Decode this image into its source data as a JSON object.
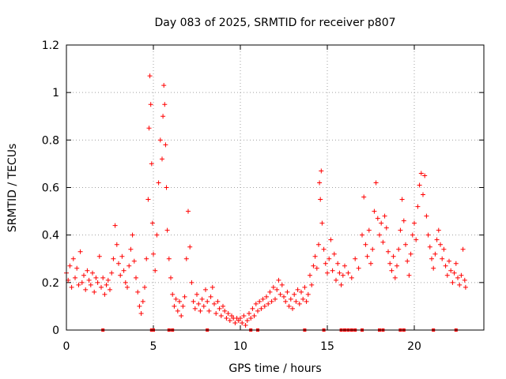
{
  "chart_data": {
    "type": "scatter",
    "title": "Day 083 of 2025, SRMTID for receiver p807",
    "xlabel": "GPS time / hours",
    "ylabel": "SRMTID / TECUs",
    "xlim": [
      0,
      24
    ],
    "ylim": [
      0,
      1.2
    ],
    "xticks": [
      0,
      5,
      10,
      15,
      20
    ],
    "yticks": [
      0,
      0.2,
      0.4,
      0.6,
      0.8,
      1,
      1.2
    ],
    "xtick_labels": [
      "0",
      "5",
      "10",
      "15",
      "20"
    ],
    "ytick_labels": [
      "0",
      "0.2",
      "0.4",
      "0.6",
      "0.8",
      "1",
      "1.2"
    ],
    "grid": true,
    "marker": "+",
    "series": [
      {
        "name": "SRMTID",
        "color": "#ff0000",
        "points": [
          [
            0.0,
            0.24
          ],
          [
            0.1,
            0.21
          ],
          [
            0.2,
            0.27
          ],
          [
            0.3,
            0.18
          ],
          [
            0.4,
            0.3
          ],
          [
            0.5,
            0.22
          ],
          [
            0.6,
            0.26
          ],
          [
            0.7,
            0.19
          ],
          [
            0.8,
            0.33
          ],
          [
            0.9,
            0.2
          ],
          [
            1.0,
            0.23
          ],
          [
            1.1,
            0.17
          ],
          [
            1.2,
            0.25
          ],
          [
            1.3,
            0.21
          ],
          [
            1.4,
            0.19
          ],
          [
            1.5,
            0.24
          ],
          [
            1.6,
            0.16
          ],
          [
            1.7,
            0.22
          ],
          [
            1.8,
            0.2
          ],
          [
            1.9,
            0.31
          ],
          [
            2.0,
            0.18
          ],
          [
            2.1,
            0.22
          ],
          [
            2.2,
            0.15
          ],
          [
            2.3,
            0.19
          ],
          [
            2.4,
            0.21
          ],
          [
            2.5,
            0.17
          ],
          [
            2.6,
            0.24
          ],
          [
            2.7,
            0.3
          ],
          [
            2.8,
            0.44
          ],
          [
            2.9,
            0.36
          ],
          [
            3.0,
            0.28
          ],
          [
            3.1,
            0.23
          ],
          [
            3.2,
            0.31
          ],
          [
            3.3,
            0.25
          ],
          [
            3.4,
            0.2
          ],
          [
            3.5,
            0.18
          ],
          [
            3.6,
            0.27
          ],
          [
            3.7,
            0.34
          ],
          [
            3.8,
            0.4
          ],
          [
            3.9,
            0.29
          ],
          [
            4.0,
            0.22
          ],
          [
            4.1,
            0.16
          ],
          [
            4.2,
            0.1
          ],
          [
            4.3,
            0.07
          ],
          [
            4.4,
            0.12
          ],
          [
            4.5,
            0.18
          ],
          [
            4.6,
            0.3
          ],
          [
            4.7,
            0.55
          ],
          [
            4.75,
            0.85
          ],
          [
            4.8,
            1.07
          ],
          [
            4.85,
            0.95
          ],
          [
            4.9,
            0.7
          ],
          [
            4.95,
            0.45
          ],
          [
            5.0,
            0.32
          ],
          [
            5.1,
            0.25
          ],
          [
            5.2,
            0.4
          ],
          [
            5.3,
            0.62
          ],
          [
            5.4,
            0.8
          ],
          [
            5.5,
            0.72
          ],
          [
            5.55,
            0.9
          ],
          [
            5.6,
            1.03
          ],
          [
            5.65,
            0.95
          ],
          [
            5.7,
            0.78
          ],
          [
            5.75,
            0.6
          ],
          [
            5.8,
            0.42
          ],
          [
            5.9,
            0.3
          ],
          [
            6.0,
            0.22
          ],
          [
            6.1,
            0.15
          ],
          [
            6.2,
            0.1
          ],
          [
            6.3,
            0.13
          ],
          [
            6.4,
            0.08
          ],
          [
            6.5,
            0.12
          ],
          [
            6.6,
            0.06
          ],
          [
            6.7,
            0.1
          ],
          [
            6.8,
            0.14
          ],
          [
            6.9,
            0.3
          ],
          [
            7.0,
            0.5
          ],
          [
            7.1,
            0.35
          ],
          [
            7.2,
            0.2
          ],
          [
            7.3,
            0.12
          ],
          [
            7.4,
            0.09
          ],
          [
            7.5,
            0.15
          ],
          [
            7.6,
            0.11
          ],
          [
            7.7,
            0.08
          ],
          [
            7.8,
            0.13
          ],
          [
            7.9,
            0.1
          ],
          [
            8.0,
            0.17
          ],
          [
            8.1,
            0.12
          ],
          [
            8.2,
            0.08
          ],
          [
            8.3,
            0.14
          ],
          [
            8.4,
            0.18
          ],
          [
            8.5,
            0.11
          ],
          [
            8.6,
            0.07
          ],
          [
            8.7,
            0.12
          ],
          [
            8.8,
            0.09
          ],
          [
            8.9,
            0.06
          ],
          [
            9.0,
            0.1
          ],
          [
            9.1,
            0.08
          ],
          [
            9.2,
            0.05
          ],
          [
            9.3,
            0.07
          ],
          [
            9.4,
            0.04
          ],
          [
            9.5,
            0.06
          ],
          [
            9.6,
            0.05
          ],
          [
            9.7,
            0.03
          ],
          [
            9.8,
            0.05
          ],
          [
            9.9,
            0.04
          ],
          [
            10.0,
            0.05
          ],
          [
            10.1,
            0.03
          ],
          [
            10.2,
            0.06
          ],
          [
            10.3,
            0.02
          ],
          [
            10.4,
            0.04
          ],
          [
            10.5,
            0.07
          ],
          [
            10.6,
            0.05
          ],
          [
            10.7,
            0.09
          ],
          [
            10.8,
            0.06
          ],
          [
            10.9,
            0.11
          ],
          [
            11.0,
            0.08
          ],
          [
            11.1,
            0.12
          ],
          [
            11.2,
            0.09
          ],
          [
            11.3,
            0.13
          ],
          [
            11.4,
            0.1
          ],
          [
            11.5,
            0.14
          ],
          [
            11.6,
            0.11
          ],
          [
            11.7,
            0.16
          ],
          [
            11.8,
            0.12
          ],
          [
            11.9,
            0.18
          ],
          [
            12.0,
            0.13
          ],
          [
            12.1,
            0.17
          ],
          [
            12.2,
            0.21
          ],
          [
            12.3,
            0.15
          ],
          [
            12.4,
            0.19
          ],
          [
            12.5,
            0.14
          ],
          [
            12.6,
            0.12
          ],
          [
            12.7,
            0.16
          ],
          [
            12.8,
            0.1
          ],
          [
            12.9,
            0.13
          ],
          [
            13.0,
            0.09
          ],
          [
            13.1,
            0.15
          ],
          [
            13.2,
            0.12
          ],
          [
            13.3,
            0.17
          ],
          [
            13.4,
            0.11
          ],
          [
            13.5,
            0.16
          ],
          [
            13.6,
            0.13
          ],
          [
            13.7,
            0.18
          ],
          [
            13.8,
            0.12
          ],
          [
            13.9,
            0.15
          ],
          [
            14.0,
            0.23
          ],
          [
            14.1,
            0.19
          ],
          [
            14.2,
            0.27
          ],
          [
            14.3,
            0.31
          ],
          [
            14.4,
            0.26
          ],
          [
            14.5,
            0.36
          ],
          [
            14.55,
            0.62
          ],
          [
            14.6,
            0.55
          ],
          [
            14.65,
            0.67
          ],
          [
            14.7,
            0.45
          ],
          [
            14.8,
            0.34
          ],
          [
            14.9,
            0.28
          ],
          [
            15.0,
            0.24
          ],
          [
            15.1,
            0.3
          ],
          [
            15.2,
            0.38
          ],
          [
            15.3,
            0.25
          ],
          [
            15.4,
            0.32
          ],
          [
            15.5,
            0.21
          ],
          [
            15.6,
            0.28
          ],
          [
            15.7,
            0.24
          ],
          [
            15.8,
            0.19
          ],
          [
            15.9,
            0.23
          ],
          [
            16.0,
            0.27
          ],
          [
            16.2,
            0.24
          ],
          [
            16.4,
            0.22
          ],
          [
            16.6,
            0.3
          ],
          [
            16.8,
            0.26
          ],
          [
            17.0,
            0.4
          ],
          [
            17.1,
            0.56
          ],
          [
            17.2,
            0.36
          ],
          [
            17.3,
            0.31
          ],
          [
            17.4,
            0.42
          ],
          [
            17.5,
            0.28
          ],
          [
            17.6,
            0.34
          ],
          [
            17.7,
            0.5
          ],
          [
            17.8,
            0.62
          ],
          [
            17.9,
            0.47
          ],
          [
            18.0,
            0.4
          ],
          [
            18.1,
            0.45
          ],
          [
            18.2,
            0.37
          ],
          [
            18.3,
            0.48
          ],
          [
            18.4,
            0.43
          ],
          [
            18.5,
            0.33
          ],
          [
            18.6,
            0.28
          ],
          [
            18.7,
            0.25
          ],
          [
            18.8,
            0.31
          ],
          [
            18.9,
            0.22
          ],
          [
            19.0,
            0.27
          ],
          [
            19.1,
            0.34
          ],
          [
            19.2,
            0.42
          ],
          [
            19.3,
            0.55
          ],
          [
            19.4,
            0.46
          ],
          [
            19.5,
            0.36
          ],
          [
            19.6,
            0.29
          ],
          [
            19.7,
            0.23
          ],
          [
            19.8,
            0.32
          ],
          [
            19.9,
            0.4
          ],
          [
            20.0,
            0.45
          ],
          [
            20.1,
            0.38
          ],
          [
            20.2,
            0.52
          ],
          [
            20.3,
            0.61
          ],
          [
            20.4,
            0.66
          ],
          [
            20.5,
            0.57
          ],
          [
            20.6,
            0.65
          ],
          [
            20.7,
            0.48
          ],
          [
            20.8,
            0.4
          ],
          [
            20.9,
            0.35
          ],
          [
            21.0,
            0.3
          ],
          [
            21.1,
            0.26
          ],
          [
            21.2,
            0.32
          ],
          [
            21.3,
            0.38
          ],
          [
            21.4,
            0.42
          ],
          [
            21.5,
            0.36
          ],
          [
            21.6,
            0.3
          ],
          [
            21.7,
            0.34
          ],
          [
            21.8,
            0.27
          ],
          [
            21.9,
            0.23
          ],
          [
            22.0,
            0.29
          ],
          [
            22.1,
            0.25
          ],
          [
            22.2,
            0.2
          ],
          [
            22.3,
            0.24
          ],
          [
            22.4,
            0.28
          ],
          [
            22.5,
            0.22
          ],
          [
            22.6,
            0.19
          ],
          [
            22.7,
            0.23
          ],
          [
            22.8,
            0.34
          ],
          [
            22.9,
            0.21
          ],
          [
            22.95,
            0.18
          ]
        ]
      }
    ],
    "gap_markers": [
      2.1,
      4.9,
      5.0,
      5.9,
      6.1,
      8.1,
      10.6,
      11.0,
      13.7,
      14.8,
      15.8,
      16.0,
      16.2,
      16.4,
      16.6,
      17.0,
      18.0,
      18.2,
      19.2,
      19.4,
      21.1,
      22.4
    ]
  }
}
